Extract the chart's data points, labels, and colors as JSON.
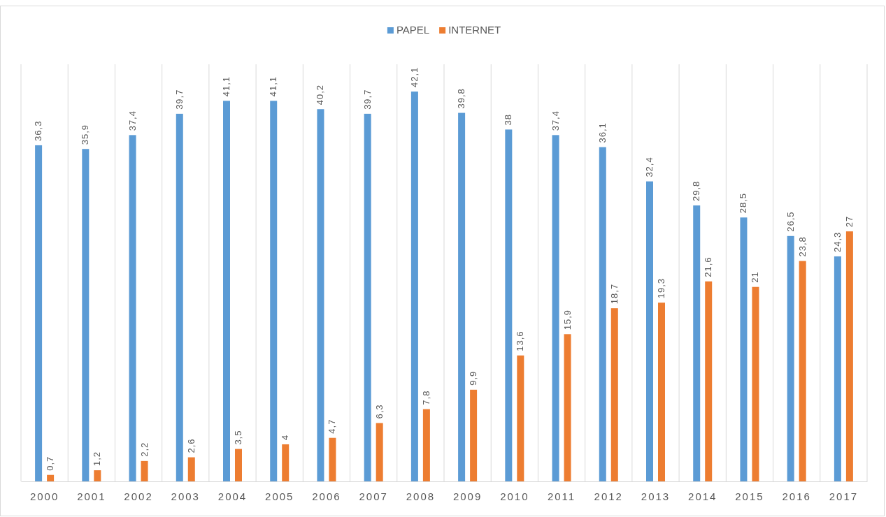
{
  "chart_data": {
    "type": "bar",
    "categories": [
      "2000",
      "2001",
      "2002",
      "2003",
      "2004",
      "2005",
      "2006",
      "2007",
      "2008",
      "2009",
      "2010",
      "2011",
      "2012",
      "2013",
      "2014",
      "2015",
      "2016",
      "2017"
    ],
    "series": [
      {
        "name": "PAPEL",
        "color": "#5b9bd5",
        "values": [
          36.3,
          35.9,
          37.4,
          39.7,
          41.1,
          41.1,
          40.2,
          39.7,
          42.1,
          39.8,
          38,
          37.4,
          36.1,
          32.4,
          29.8,
          28.5,
          26.5,
          24.3
        ],
        "value_labels": [
          "36,3",
          "35,9",
          "37,4",
          "39,7",
          "41,1",
          "41,1",
          "40,2",
          "39,7",
          "42,1",
          "39,8",
          "38",
          "37,4",
          "36,1",
          "32,4",
          "29,8",
          "28,5",
          "26,5",
          "24,3"
        ]
      },
      {
        "name": "INTERNET",
        "color": "#ed7d31",
        "values": [
          0.7,
          1.2,
          2.2,
          2.6,
          3.5,
          4,
          4.7,
          6.3,
          7.8,
          9.9,
          13.6,
          15.9,
          18.7,
          19.3,
          21.6,
          21,
          23.8,
          27
        ],
        "value_labels": [
          "0,7",
          "1,2",
          "2,2",
          "2,6",
          "3,5",
          "4",
          "4,7",
          "6,3",
          "7,8",
          "9,9",
          "13,6",
          "15,9",
          "18,7",
          "19,3",
          "21,6",
          "21",
          "23,8",
          "27"
        ]
      }
    ],
    "grid": "x",
    "legend": "top"
  }
}
